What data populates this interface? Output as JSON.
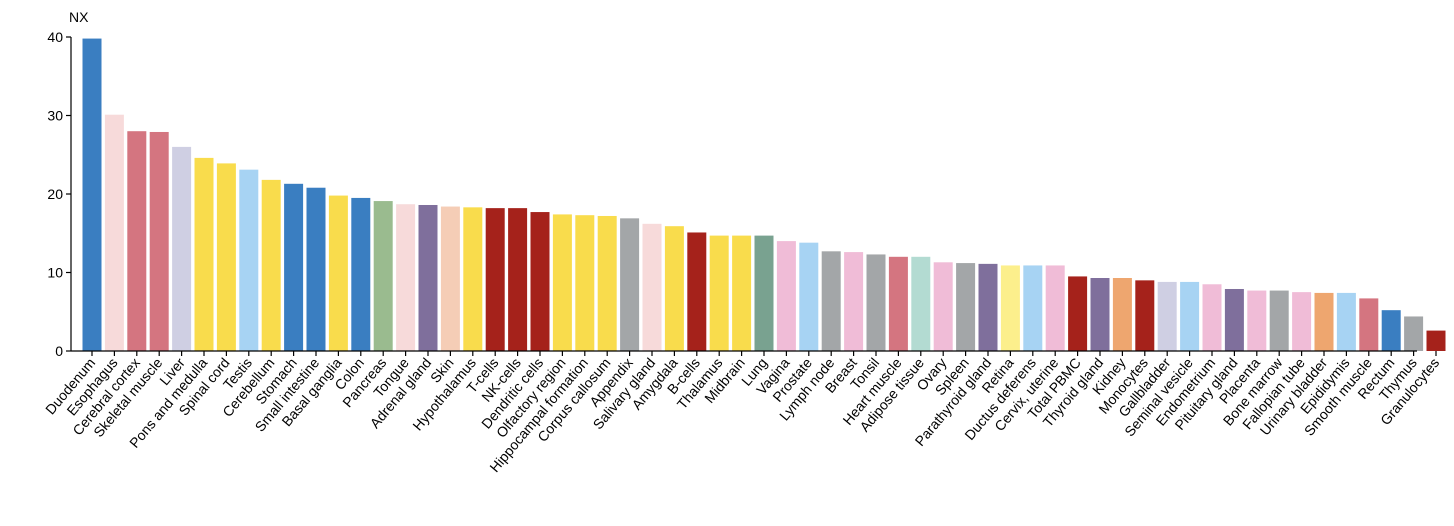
{
  "chart_data": {
    "type": "bar",
    "ylabel": "NX",
    "ylim": [
      0,
      40
    ],
    "yticks": [
      0,
      10,
      20,
      30,
      40
    ],
    "grid": false,
    "legend": "none",
    "categories": [
      "Duodenum",
      "Esophagus",
      "Cerebral cortex",
      "Skeletal muscle",
      "Liver",
      "Pons and medulla",
      "Spinal cord",
      "Testis",
      "Cerebellum",
      "Stomach",
      "Small intestine",
      "Basal ganglia",
      "Colon",
      "Pancreas",
      "Tongue",
      "Adrenal gland",
      "Skin",
      "Hypothalamus",
      "T-cells",
      "NK-cells",
      "Dendritic cells",
      "Olfactory region",
      "Hippocampal formation",
      "Corpus callosum",
      "Appendix",
      "Salivary gland",
      "Amygdala",
      "B-cells",
      "Thalamus",
      "Midbrain",
      "Lung",
      "Vagina",
      "Prostate",
      "Lymph node",
      "Breast",
      "Tonsil",
      "Heart muscle",
      "Adipose tissue",
      "Ovary",
      "Spleen",
      "Parathyroid gland",
      "Retina",
      "Ductus deferens",
      "Cervix, uterine",
      "Total PBMC",
      "Thyroid gland",
      "Kidney",
      "Monocytes",
      "Gallbladder",
      "Seminal vesicle",
      "Endometrium",
      "Pituitary gland",
      "Placenta",
      "Bone marrow",
      "Fallopian tube",
      "Urinary bladder",
      "Epididymis",
      "Smooth muscle",
      "Rectum",
      "Thymus",
      "Granulocytes"
    ],
    "values": [
      39.8,
      30.1,
      28.0,
      27.9,
      26.0,
      24.6,
      23.9,
      23.1,
      21.8,
      21.3,
      20.8,
      19.8,
      19.5,
      19.1,
      18.7,
      18.6,
      18.4,
      18.3,
      18.2,
      18.2,
      17.7,
      17.4,
      17.3,
      17.2,
      16.9,
      16.2,
      15.9,
      15.1,
      14.7,
      14.7,
      14.7,
      14.0,
      13.8,
      12.7,
      12.6,
      12.3,
      12.0,
      12.0,
      11.3,
      11.2,
      11.1,
      10.9,
      10.9,
      10.9,
      9.5,
      9.3,
      9.3,
      9.0,
      8.8,
      8.8,
      8.5,
      7.9,
      7.7,
      7.7,
      7.5,
      7.4,
      7.4,
      6.7,
      5.2,
      4.4,
      2.6
    ],
    "colors": [
      "#3a7ec1",
      "#f7dada",
      "#d47580",
      "#d47580",
      "#cfcfe3",
      "#f9dc4c",
      "#f9dc4c",
      "#a7d3f3",
      "#f9dc4c",
      "#3a7ec1",
      "#3a7ec1",
      "#f9dc4c",
      "#3a7ec1",
      "#9abb8f",
      "#f7dada",
      "#7f6f9c",
      "#f5cdb6",
      "#f9dc4c",
      "#a5221b",
      "#a5221b",
      "#a5221b",
      "#f9dc4c",
      "#f9dc4c",
      "#f9dc4c",
      "#a3a6a8",
      "#f7dada",
      "#f9dc4c",
      "#a5221b",
      "#f9dc4c",
      "#f9dc4c",
      "#79a290",
      "#f0bcd7",
      "#a7d3f3",
      "#a3a6a8",
      "#f0bcd7",
      "#a3a6a8",
      "#d47580",
      "#b3dbd2",
      "#f0bcd7",
      "#a3a6a8",
      "#7f6f9c",
      "#fcef8c",
      "#a7d3f3",
      "#f0bcd7",
      "#a5221b",
      "#7f6f9c",
      "#eea66f",
      "#a5221b",
      "#cfcfe3",
      "#a7d3f3",
      "#f0bcd7",
      "#7f6f9c",
      "#f0bcd7",
      "#a3a6a8",
      "#f0bcd7",
      "#eea66f",
      "#a7d3f3",
      "#d47580",
      "#3a7ec1",
      "#a3a6a8",
      "#a5221b"
    ],
    "axis_color": "#000000"
  }
}
